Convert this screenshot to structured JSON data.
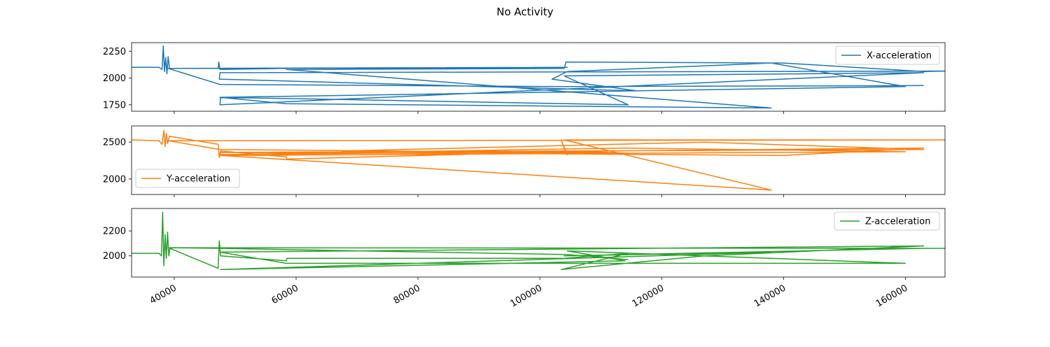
{
  "chart_data": {
    "type": "line",
    "title": "No Activity",
    "x_ticks": [
      40000,
      60000,
      80000,
      100000,
      120000,
      140000,
      160000
    ],
    "x_tick_labels": [
      "40000",
      "60000",
      "80000",
      "100000",
      "120000",
      "140000",
      "160000"
    ],
    "xlim": [
      33000,
      166500
    ],
    "grid": false,
    "subplots": [
      {
        "series": [
          {
            "name": "X-acceleration",
            "color": "#1f77b4",
            "x": [
              33000,
              37500,
              38000,
              38200,
              38400,
              38600,
              38800,
              39000,
              39200,
              47200,
              47300,
              47500,
              58300,
              58400,
              104000,
              104300,
              140000,
              163000,
              166500,
              47500,
              47400,
              116000,
              102000,
              104500,
              138000,
              160000,
              47600,
              47500,
              163000,
              104000,
              114500,
              47500,
              58400,
              138000,
              58400,
              104500,
              39000,
              47500,
              104000,
              163000
            ],
            "y": [
              2100,
              2100,
              2080,
              2300,
              2060,
              2190,
              2040,
              2200,
              2090,
              2090,
              2150,
              2080,
              2090,
              2080,
              2090,
              2150,
              2140,
              2060,
              2065,
              2050,
              1990,
              1880,
              1990,
              2060,
              2140,
              1920,
              1820,
              1750,
              2050,
              2020,
              1750,
              1820,
              1760,
              1720,
              2080,
              2100,
              2090,
              1940,
              1920,
              1930
            ]
          }
        ],
        "ylim": [
          1690,
          2330
        ],
        "y_ticks": [
          1750,
          2000,
          2250
        ],
        "y_tick_labels": [
          "1750",
          "2000",
          "2250"
        ],
        "legend_loc": "upper right"
      },
      {
        "series": [
          {
            "name": "Y-acceleration",
            "color": "#ff7f0e",
            "x": [
              33000,
              37500,
              38000,
              38300,
              38500,
              38700,
              38900,
              39200,
              47200,
              47400,
              47600,
              58400,
              58500,
              104000,
              104500,
              103500,
              104200,
              114500,
              67500,
              127000,
              163000,
              47500,
              104500,
              140000,
              163000,
              47500,
              114000,
              160000,
              47600,
              138000,
              104000,
              166500,
              39000,
              47500,
              114500,
              104500
            ],
            "y": [
              2530,
              2520,
              2470,
              2660,
              2440,
              2620,
              2480,
              2580,
              2470,
              2290,
              2380,
              2300,
              2270,
              2370,
              2330,
              2530,
              2370,
              2340,
              2380,
              2500,
              2400,
              2360,
              2340,
              2320,
              2420,
              2330,
              2420,
              2370,
              2320,
              1850,
              2530,
              2530,
              2520,
              2400,
              2350,
              2380
            ]
          }
        ],
        "ylim": [
          1790,
          2720
        ],
        "y_ticks": [
          2000,
          2500
        ],
        "y_tick_labels": [
          "2000",
          "2500"
        ],
        "legend_loc": "lower left"
      },
      {
        "series": [
          {
            "name": "Z-acceleration",
            "color": "#2ca02c",
            "x": [
              33000,
              37500,
              37900,
              38100,
              38300,
              38500,
              38700,
              38900,
              39100,
              39300,
              47200,
              47400,
              47600,
              58400,
              58500,
              104000,
              114500,
              103500,
              127000,
              163000,
              47500,
              58400,
              160000,
              104500,
              114000,
              47600,
              138000,
              104000,
              163000,
              166500,
              39000,
              47500,
              104500,
              114500
            ],
            "y": [
              2020,
              2020,
              2000,
              2350,
              1920,
              2170,
              1980,
              2190,
              2000,
              2060,
              1900,
              2120,
              2000,
              1960,
              1980,
              1980,
              2020,
              1890,
              2000,
              2080,
              2030,
              1940,
              1940,
              2040,
              1960,
              1890,
              2030,
              2000,
              2060,
              2060,
              2065,
              2060,
              2010,
              1970
            ]
          }
        ],
        "ylim": [
          1830,
          2380
        ],
        "y_ticks": [
          2000,
          2200
        ],
        "y_tick_labels": [
          "2000",
          "2200"
        ],
        "legend_loc": "upper right"
      }
    ]
  }
}
